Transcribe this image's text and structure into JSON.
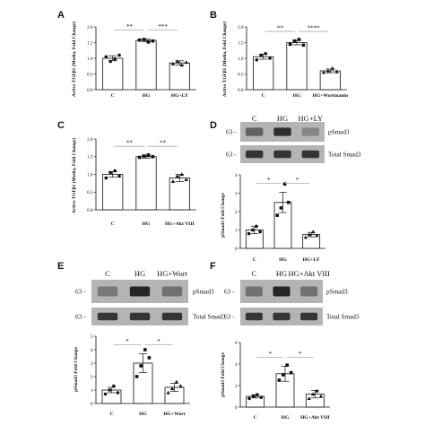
{
  "colors": {
    "ink": "#111111",
    "blot_bg": "#b4b4b4",
    "band": "#1e1e1e",
    "sig_line": "#a8a8cc"
  },
  "panels": [
    {
      "letter": "A",
      "chart_data": {
        "type": "bar",
        "ylabel": "Active TGFβ1 (Media, Fold Change)",
        "categories": [
          "C",
          "HG",
          "HG+LY"
        ],
        "values": [
          1.0,
          1.57,
          0.85
        ],
        "errors": [
          0.08,
          0.04,
          0.07
        ],
        "points": [
          [
            1.05,
            0.9,
            0.98,
            1.1
          ],
          [
            1.58,
            1.6,
            1.52,
            1.55
          ],
          [
            0.82,
            0.9,
            0.78,
            0.87
          ]
        ],
        "ylim": [
          0,
          2.0
        ],
        "yticks": [
          "0.0",
          "0.5",
          "1.0",
          "1.5",
          "2.0"
        ],
        "significance": [
          {
            "from": 0,
            "to": 1,
            "label": "**"
          },
          {
            "from": 1,
            "to": 2,
            "label": "***"
          }
        ]
      }
    },
    {
      "letter": "B",
      "chart_data": {
        "type": "bar",
        "ylabel": "Active TGFβ1 (Media, Fold Change)",
        "categories": [
          "C",
          "HG",
          "HG+Wortmanin"
        ],
        "values": [
          1.05,
          1.5,
          0.6
        ],
        "errors": [
          0.08,
          0.07,
          0.06
        ],
        "points": [
          [
            0.95,
            1.1,
            1.15,
            1.0
          ],
          [
            1.45,
            1.55,
            1.6,
            1.42
          ],
          [
            0.55,
            0.6,
            0.68,
            0.57
          ]
        ],
        "ylim": [
          0,
          2.0
        ],
        "yticks": [
          "0.0",
          "0.5",
          "1.0",
          "1.5",
          "2.0"
        ],
        "significance": [
          {
            "from": 0,
            "to": 1,
            "label": "**"
          },
          {
            "from": 1,
            "to": 2,
            "label": "****"
          }
        ]
      }
    },
    {
      "letter": "C",
      "chart_data": {
        "type": "bar",
        "ylabel": "Active TGFβ1 (Media, Fold Change)",
        "categories": [
          "C",
          "HG",
          "HG+Akt VIII"
        ],
        "values": [
          1.0,
          1.5,
          0.9
        ],
        "errors": [
          0.08,
          0.04,
          0.1
        ],
        "points": [
          [
            0.9,
            1.05,
            1.1,
            0.95
          ],
          [
            1.48,
            1.52,
            1.55,
            1.5
          ],
          [
            0.8,
            0.95,
            1.0,
            0.85
          ]
        ],
        "ylim": [
          0,
          2.0
        ],
        "yticks": [
          "0.0",
          "0.5",
          "1.0",
          "1.5",
          "2.0"
        ],
        "significance": [
          {
            "from": 0,
            "to": 1,
            "label": "**"
          },
          {
            "from": 1,
            "to": 2,
            "label": "**"
          }
        ]
      }
    },
    {
      "letter": "D",
      "blot": {
        "lanes": [
          "C",
          "HG",
          "HG+LY"
        ],
        "rows": [
          {
            "marker": "63 -",
            "label": "pSmad3",
            "intensity": [
              0.55,
              0.9,
              0.3
            ]
          },
          {
            "marker": "63 -",
            "label": "Total Smad3",
            "intensity": [
              0.85,
              0.85,
              0.85
            ]
          }
        ]
      },
      "chart_data": {
        "type": "bar",
        "ylabel": "pSmad3 Fold Change",
        "categories": [
          "C",
          "HG",
          "HG+LY"
        ],
        "values": [
          1.0,
          2.5,
          0.75
        ],
        "errors": [
          0.2,
          0.55,
          0.12
        ],
        "points": [
          [
            0.8,
            1.0,
            1.2,
            0.9
          ],
          [
            1.8,
            2.2,
            3.5,
            2.5
          ],
          [
            0.6,
            0.75,
            0.9,
            0.7
          ]
        ],
        "ylim": [
          0,
          4
        ],
        "yticks": [
          "0",
          "1",
          "2",
          "3",
          "4"
        ],
        "significance": [
          {
            "from": 0,
            "to": 1,
            "label": "*"
          },
          {
            "from": 1,
            "to": 2,
            "label": "*"
          }
        ]
      }
    },
    {
      "letter": "E",
      "blot": {
        "lanes": [
          "C",
          "HG",
          "HG+Wort"
        ],
        "rows": [
          {
            "marker": "63 -",
            "label": "pSmad3",
            "intensity": [
              0.4,
              0.95,
              0.45
            ]
          },
          {
            "marker": "63 -",
            "label": "Total Smad3",
            "intensity": [
              0.85,
              0.85,
              0.85
            ]
          }
        ]
      },
      "chart_data": {
        "type": "bar",
        "ylabel": "pSmad3 Fold Change",
        "categories": [
          "C",
          "HG",
          "HG+Wort"
        ],
        "values": [
          1.0,
          3.0,
          1.2
        ],
        "errors": [
          0.2,
          0.7,
          0.3
        ],
        "points": [
          [
            0.7,
            1.0,
            1.3,
            0.8
          ],
          [
            2.0,
            2.8,
            4.0,
            3.4
          ],
          [
            0.8,
            1.1,
            1.6,
            1.3
          ]
        ],
        "ylim": [
          0,
          5
        ],
        "yticks": [
          "0",
          "1",
          "2",
          "3",
          "4",
          "5"
        ],
        "significance": [
          {
            "from": 0,
            "to": 1,
            "label": "*"
          },
          {
            "from": 1,
            "to": 2,
            "label": "*"
          }
        ]
      }
    },
    {
      "letter": "F",
      "blot": {
        "lanes": [
          "C",
          "HG",
          "HG+Akt VIII"
        ],
        "rows": [
          {
            "marker": "63 -",
            "label": "pSmad3",
            "intensity": [
              0.45,
              0.95,
              0.45
            ]
          },
          {
            "marker": "63 -",
            "label": "Total Smad3",
            "intensity": [
              0.85,
              0.85,
              0.85
            ]
          }
        ]
      },
      "chart_data": {
        "type": "bar",
        "ylabel": "pSmad3 Fold Change",
        "categories": [
          "C",
          "HG",
          "HG+Akt VIII"
        ],
        "values": [
          1.0,
          3.1,
          1.2
        ],
        "errors": [
          0.15,
          0.7,
          0.35
        ],
        "points": [
          [
            0.8,
            1.0,
            1.15,
            0.9
          ],
          [
            2.5,
            3.0,
            3.9,
            3.2
          ],
          [
            0.8,
            1.2,
            1.5,
            1.0
          ]
        ],
        "ylim": [
          0,
          6
        ],
        "yticks": [
          "0",
          "2",
          "4",
          "6"
        ],
        "significance": [
          {
            "from": 0,
            "to": 1,
            "label": "*"
          },
          {
            "from": 1,
            "to": 2,
            "label": "*"
          }
        ]
      }
    }
  ]
}
